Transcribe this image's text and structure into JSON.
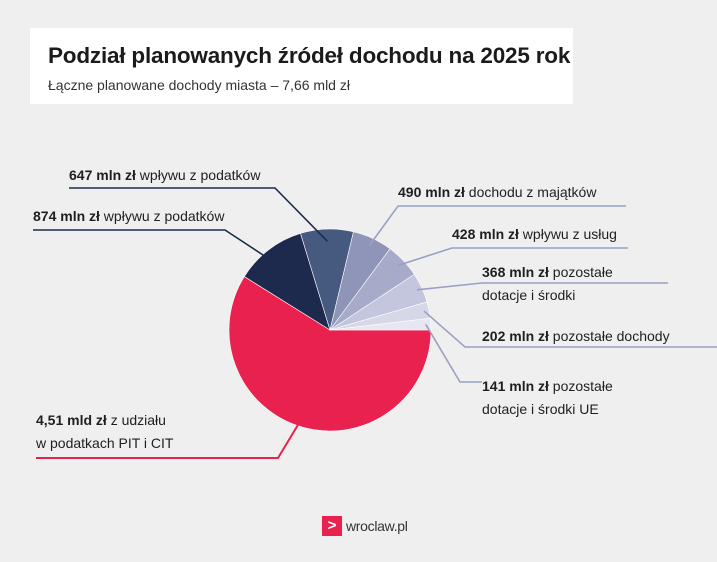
{
  "header": {
    "title": "Podział planowanych źródeł dochodu na 2025 rok",
    "subtitle": "Łączne planowane dochody miasta – 7,66 mld zł"
  },
  "chart_data": {
    "type": "pie",
    "unit": "mln zł",
    "slices": [
      {
        "value": 4510,
        "amount": "4,51 mld zł",
        "text_lines": [
          "z udziału",
          "w podatkach PIT i CIT"
        ],
        "color": "#e8214f"
      },
      {
        "value": 874,
        "amount": "874 mln zł",
        "text_lines": [
          "wpływu z podatków"
        ],
        "color": "#1d2a4d"
      },
      {
        "value": 647,
        "amount": "647 mln zł",
        "text_lines": [
          "wpływu z podatków"
        ],
        "color": "#465a80"
      },
      {
        "value": 490,
        "amount": "490 mln zł",
        "text_lines": [
          "dochodu z majątków"
        ],
        "color": "#8f95b8"
      },
      {
        "value": 428,
        "amount": "428 mln zł",
        "text_lines": [
          "wpływu z usług"
        ],
        "color": "#a7abc9"
      },
      {
        "value": 368,
        "amount": "368 mln zł",
        "text_lines": [
          "pozostałe",
          "dotacje i środki"
        ],
        "color": "#c3c6dc"
      },
      {
        "value": 202,
        "amount": "202 mln zł",
        "text_lines": [
          "pozostałe dochody"
        ],
        "color": "#d6d8e8"
      },
      {
        "value": 141,
        "amount": "141 mln zł",
        "text_lines": [
          "pozostałe",
          "dotacje i środki UE"
        ],
        "color": "#e6e7f1"
      }
    ]
  },
  "footer": {
    "logo_mark": ">",
    "logo_text": "wroclaw.pl"
  }
}
